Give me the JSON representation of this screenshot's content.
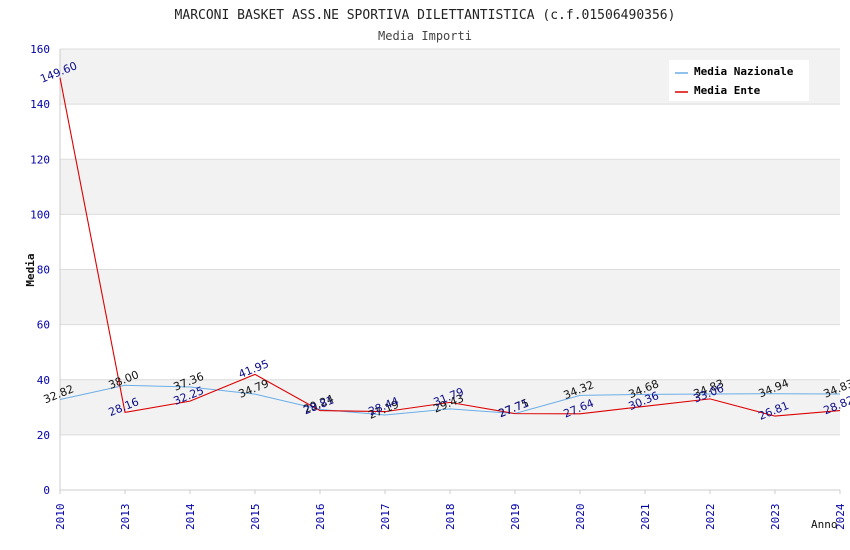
{
  "chart_data": {
    "type": "line",
    "title": "MARCONI BASKET ASS.NE SPORTIVA DILETTANTISTICA (c.f.01506490356)",
    "subtitle": "Media Importi",
    "xlabel": "Anno",
    "ylabel": "Media",
    "ylim": [
      0,
      160
    ],
    "yticks": [
      0,
      20,
      40,
      60,
      80,
      100,
      120,
      140,
      160
    ],
    "categories": [
      "2010",
      "2013",
      "2014",
      "2015",
      "2016",
      "2017",
      "2018",
      "2019",
      "2020",
      "2021",
      "2022",
      "2023",
      "2024"
    ],
    "series": [
      {
        "name": "Media Nazionale",
        "color": "#6aaee8",
        "values": [
          32.82,
          38.0,
          37.36,
          34.79,
          29.24,
          27.19,
          29.43,
          27.75,
          34.32,
          34.68,
          34.83,
          34.94,
          34.83
        ],
        "labels": [
          "32.82",
          "38.00",
          "37.36",
          "34.79",
          "29.24",
          "27.19",
          "29.43",
          "27.75",
          "34.32",
          "34.68",
          "34.83",
          "34.94",
          "34.83"
        ]
      },
      {
        "name": "Media Ente",
        "color": "#dd0000",
        "values": [
          149.6,
          28.16,
          32.25,
          41.95,
          28.81,
          28.44,
          31.79,
          27.71,
          27.64,
          30.36,
          33.06,
          26.81,
          28.82
        ],
        "labels": [
          "149.60",
          "28.16",
          "32.25",
          "41.95",
          "28.81",
          "28.44",
          "31.79",
          "27.71",
          "27.64",
          "30.36",
          "33.06",
          "26.81",
          "28.82"
        ]
      }
    ],
    "grid": true,
    "legend": "top-right"
  }
}
